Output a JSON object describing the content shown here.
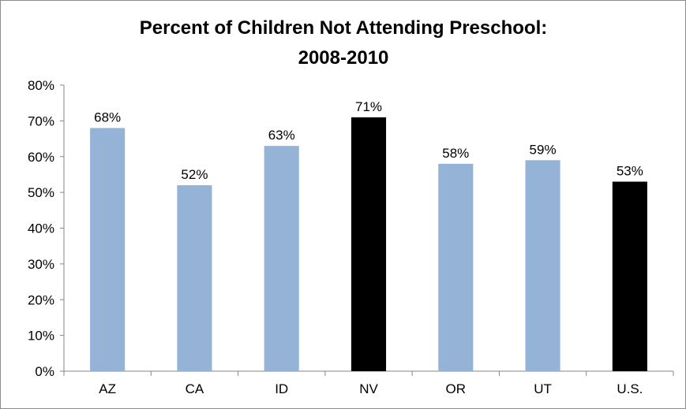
{
  "chart_data": {
    "type": "bar",
    "title_lines": [
      "Percent of Children Not Attending Preschool:",
      "2008-2010"
    ],
    "xlabel": "",
    "ylabel": "",
    "categories": [
      "AZ",
      "CA",
      "ID",
      "NV",
      "OR",
      "UT",
      "U.S."
    ],
    "values": [
      68,
      52,
      63,
      71,
      58,
      59,
      53
    ],
    "data_labels": [
      "68%",
      "52%",
      "63%",
      "71%",
      "58%",
      "59%",
      "53%"
    ],
    "bar_colors": [
      "#95b3d7",
      "#95b3d7",
      "#95b3d7",
      "#000000",
      "#95b3d7",
      "#95b3d7",
      "#000000"
    ],
    "ylim": [
      0,
      80
    ],
    "y_ticks": [
      0,
      10,
      20,
      30,
      40,
      50,
      60,
      70,
      80
    ],
    "y_tick_labels": [
      "0%",
      "10%",
      "20%",
      "30%",
      "40%",
      "50%",
      "60%",
      "70%",
      "80%"
    ],
    "grid": false,
    "legend": "none"
  }
}
